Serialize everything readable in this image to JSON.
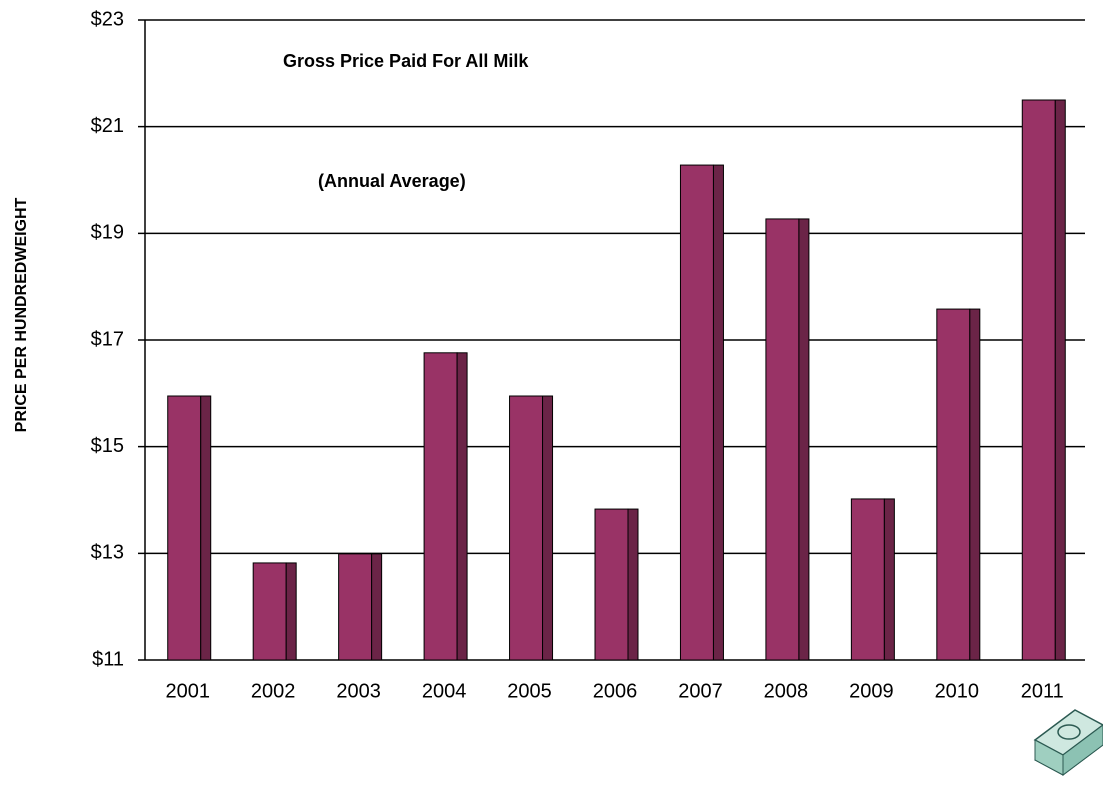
{
  "chart_data": {
    "type": "bar",
    "title": "Gross Price Paid For All Milk",
    "subtitle": "(Annual Average)",
    "y_label": "PRICE PER HUNDREDWEIGHT",
    "categories": [
      "2001",
      "2002",
      "2003",
      "2004",
      "2005",
      "2006",
      "2007",
      "2008",
      "2009",
      "2010",
      "2011"
    ],
    "values": [
      15.95,
      12.82,
      12.99,
      16.76,
      15.95,
      13.83,
      20.28,
      19.27,
      14.02,
      17.58,
      21.5
    ],
    "color": "#993366",
    "ylim": [
      11,
      23
    ],
    "yticks": [
      {
        "value": 11,
        "label": "$11"
      },
      {
        "value": 13,
        "label": "$13"
      },
      {
        "value": 15,
        "label": "$15"
      },
      {
        "value": 17,
        "label": "$17"
      },
      {
        "value": 19,
        "label": "$19"
      },
      {
        "value": 21,
        "label": "$21"
      },
      {
        "value": 23,
        "label": "$23"
      }
    ],
    "grid": true
  }
}
